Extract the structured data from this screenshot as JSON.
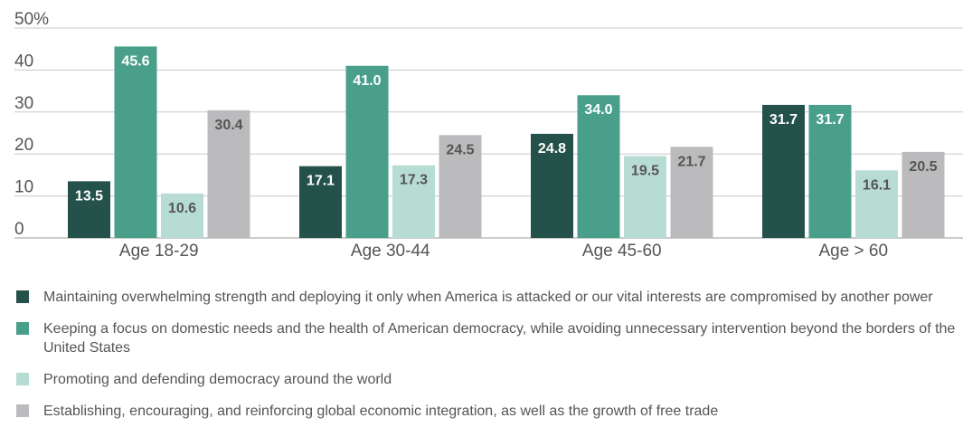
{
  "chart_data": {
    "type": "bar",
    "categories": [
      "Age 18-29",
      "Age 30-44",
      "Age 45-60",
      "Age > 60"
    ],
    "series": [
      {
        "name": "Maintaining overwhelming strength and deploying it only when America is attacked or our vital interests are compromised by another power",
        "color": "#24524a",
        "values": [
          13.5,
          17.1,
          24.8,
          31.7
        ]
      },
      {
        "name": "Keeping a focus on domestic needs and the health of American democracy, while avoiding unnecessary intervention beyond the borders of the United States",
        "color": "#4a9f8b",
        "values": [
          45.6,
          41.0,
          34.0,
          31.7
        ]
      },
      {
        "name": "Promoting and defending democracy around the world",
        "color": "#b7dcd4",
        "values": [
          10.6,
          17.3,
          19.5,
          16.1
        ]
      },
      {
        "name": "Establishing, encouraging, and reinforcing global economic integration, as well as the growth of free trade",
        "color": "#bbbbbd",
        "values": [
          30.4,
          24.5,
          21.7,
          20.5
        ]
      }
    ],
    "value_labels": [
      [
        "13.5",
        "17.1",
        "24.8",
        "31.7"
      ],
      [
        "45.6",
        "41.0",
        "34.0",
        "31.7"
      ],
      [
        "10.6",
        "17.3",
        "19.5",
        "16.1"
      ],
      [
        "30.4",
        "24.5",
        "21.7",
        "20.5"
      ]
    ],
    "y_ticks": [
      "0",
      "10",
      "20",
      "30",
      "40",
      "50%"
    ],
    "ylim": [
      0,
      50
    ],
    "grid": true,
    "legend_position": "bottom",
    "label_color_dark": "#ffffff",
    "label_color_light": "#555555"
  }
}
